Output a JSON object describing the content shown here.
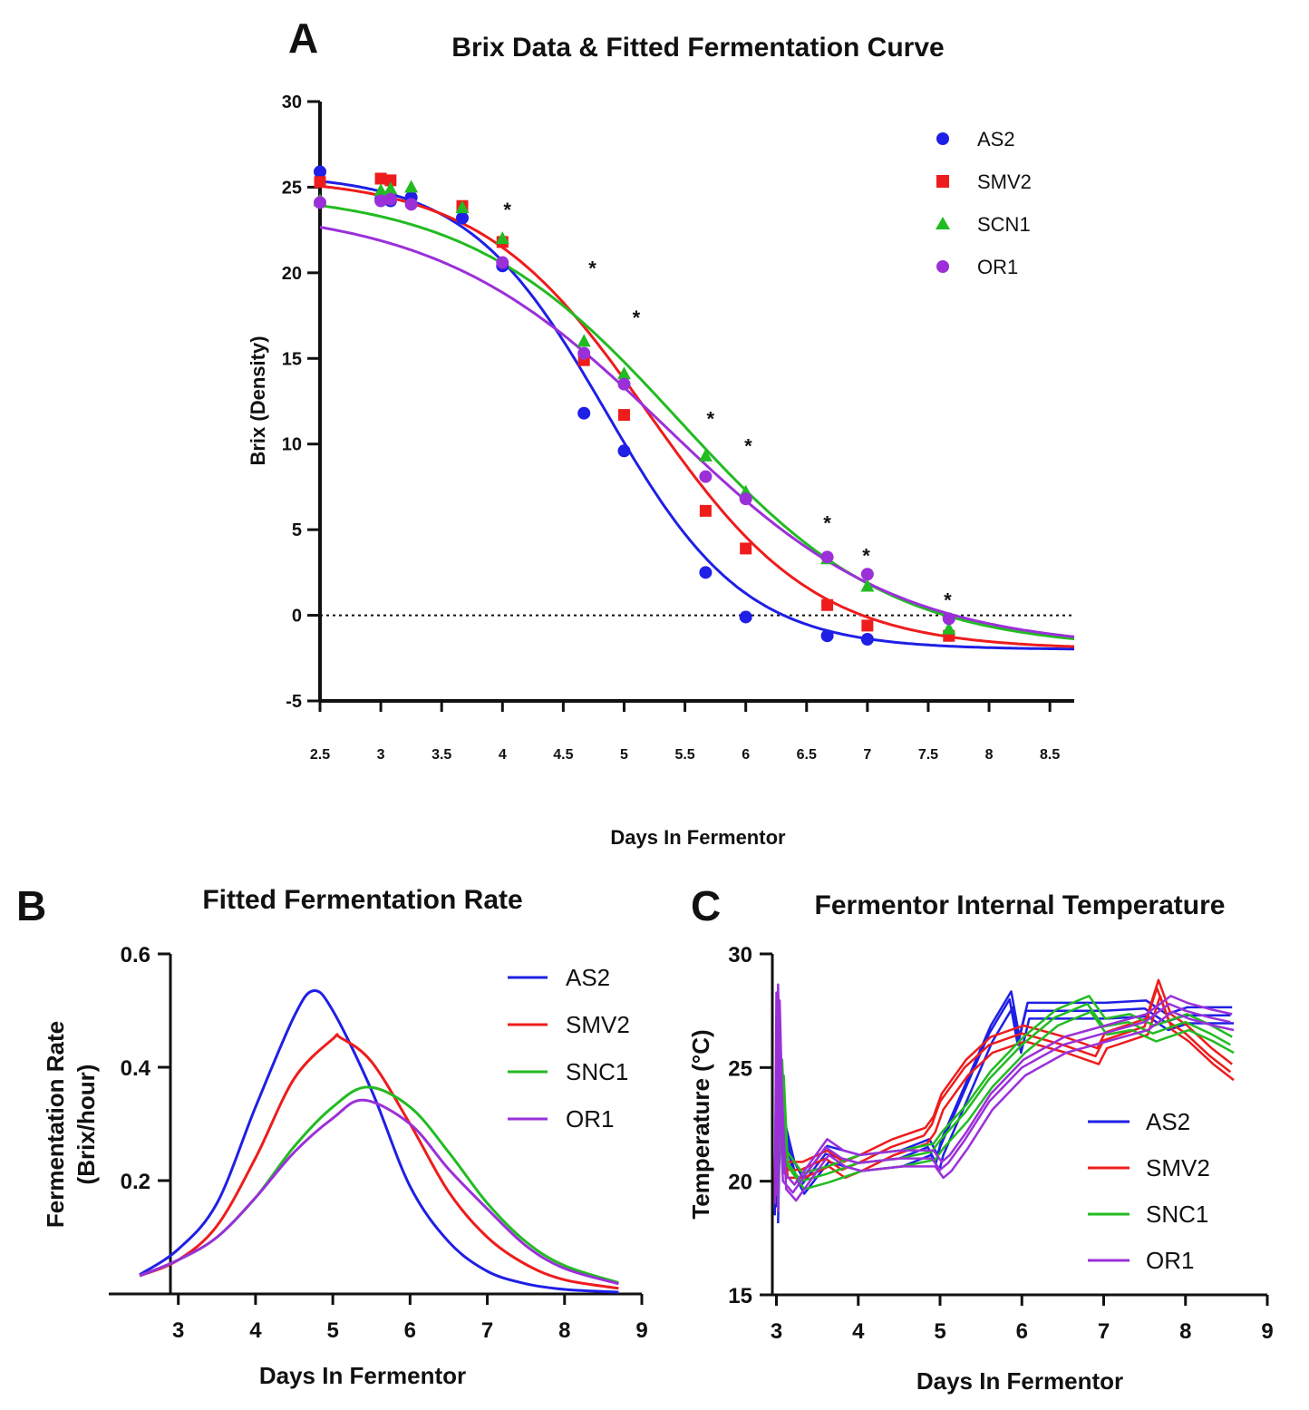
{
  "chart_data": [
    {
      "panel": "A",
      "type": "scatter",
      "title": "Brix Data & Fitted Fermentation Curve",
      "xlabel": "Days In Fermentor",
      "ylabel": "Brix (Density)",
      "xlim": [
        2.5,
        8.7
      ],
      "ylim": [
        -5,
        30
      ],
      "xticks": [
        "2.5",
        "3",
        "3.5",
        "4",
        "4.5",
        "5",
        "5.5",
        "6",
        "6.5",
        "7",
        "7.5",
        "8",
        "8.5"
      ],
      "yticks": [
        "-5",
        "0",
        "5",
        "10",
        "15",
        "20",
        "25",
        "30"
      ],
      "reference_line": 0,
      "legend_position": "top-right",
      "significance_marker": "*",
      "significance_x": [
        4.04,
        4.74,
        5.1,
        5.71,
        6.02,
        6.67,
        6.99,
        7.66
      ],
      "significance_y": [
        23.8,
        20.4,
        17.5,
        11.6,
        10.0,
        5.5,
        3.6,
        1.0
      ],
      "series": [
        {
          "name": "AS2",
          "color": "#1f1fe6",
          "marker": "circle",
          "x": [
            2.5,
            3.0,
            3.08,
            3.25,
            3.67,
            4.0,
            4.67,
            5.0,
            5.67,
            6.0,
            6.67,
            7.0
          ],
          "y": [
            25.9,
            24.3,
            24.2,
            24.4,
            23.2,
            20.4,
            11.8,
            9.6,
            2.5,
            -0.1,
            -1.2,
            -1.4
          ],
          "fit": {
            "top": 25.8,
            "bottom": -2.0,
            "x50": 4.85,
            "slope": 1.75
          }
        },
        {
          "name": "SMV2",
          "color": "#ee1c1c",
          "marker": "square",
          "x": [
            2.5,
            3.0,
            3.08,
            3.67,
            4.0,
            4.67,
            5.0,
            5.67,
            6.0,
            6.67,
            7.0,
            7.67
          ],
          "y": [
            25.3,
            25.5,
            25.4,
            23.9,
            21.8,
            14.9,
            11.7,
            6.1,
            3.9,
            0.6,
            -0.6,
            -1.2
          ],
          "fit": {
            "top": 25.6,
            "bottom": -2.0,
            "x50": 5.2,
            "slope": 1.45
          }
        },
        {
          "name": "SCN1",
          "color": "#22bb22",
          "marker": "triangle",
          "x": [
            2.5,
            3.0,
            3.08,
            3.25,
            3.67,
            4.0,
            4.67,
            5.0,
            5.67,
            6.0,
            6.67,
            7.0,
            7.67
          ],
          "y": [
            24.2,
            24.8,
            24.9,
            25.0,
            23.8,
            22.0,
            16.0,
            14.1,
            9.3,
            7.2,
            3.3,
            1.7,
            -0.8
          ],
          "fit": {
            "top": 24.8,
            "bottom": -2.0,
            "x50": 5.45,
            "slope": 1.15
          }
        },
        {
          "name": "OR1",
          "color": "#9b30d9",
          "marker": "circle",
          "x": [
            2.5,
            3.0,
            3.08,
            3.25,
            4.0,
            4.67,
            5.0,
            5.67,
            6.0,
            6.67,
            7.0,
            7.67
          ],
          "y": [
            24.1,
            24.2,
            24.3,
            24.0,
            20.6,
            15.3,
            13.5,
            8.1,
            6.8,
            3.4,
            2.4,
            -0.2
          ],
          "fit": {
            "top": 23.9,
            "bottom": -2.0,
            "x50": 5.35,
            "slope": 1.05
          }
        }
      ]
    },
    {
      "panel": "B",
      "type": "line",
      "title": "Fitted Fermentation Rate",
      "xlabel": "Days In Fermentor",
      "ylabel_line1": "Fermentation Rate",
      "ylabel_line2": "(Brix/hour)",
      "xlim": [
        2.1,
        9.0
      ],
      "ylim": [
        0.0,
        0.6
      ],
      "xticks": [
        "3",
        "4",
        "5",
        "6",
        "7",
        "8",
        "9"
      ],
      "yticks": [
        "0.2",
        "0.4",
        "0.6"
      ],
      "legend_position": "top-right",
      "series": [
        {
          "name": "AS2",
          "color": "#1f1fe6",
          "x": [
            2.5,
            3.0,
            3.5,
            4.0,
            4.5,
            4.75,
            5.0,
            5.5,
            6.0,
            6.5,
            7.0,
            7.5,
            8.0,
            8.7
          ],
          "y": [
            0.034,
            0.079,
            0.16,
            0.33,
            0.49,
            0.535,
            0.5,
            0.36,
            0.19,
            0.092,
            0.04,
            0.018,
            0.008,
            0.003
          ]
        },
        {
          "name": "SMV2",
          "color": "#ee1c1c",
          "x": [
            2.5,
            3.0,
            3.5,
            4.0,
            4.5,
            5.0,
            5.1,
            5.5,
            6.0,
            6.5,
            7.0,
            7.5,
            8.0,
            8.7
          ],
          "y": [
            0.032,
            0.06,
            0.12,
            0.24,
            0.38,
            0.45,
            0.452,
            0.41,
            0.3,
            0.18,
            0.1,
            0.052,
            0.025,
            0.01
          ]
        },
        {
          "name": "SNC1",
          "color": "#22bb22",
          "x": [
            2.5,
            3.0,
            3.5,
            4.0,
            4.5,
            5.0,
            5.45,
            6.0,
            6.5,
            7.0,
            7.5,
            8.0,
            8.7
          ],
          "y": [
            0.032,
            0.06,
            0.1,
            0.17,
            0.26,
            0.33,
            0.365,
            0.33,
            0.25,
            0.16,
            0.092,
            0.05,
            0.02
          ]
        },
        {
          "name": "OR1",
          "color": "#9b30d9",
          "x": [
            2.5,
            3.0,
            3.5,
            4.0,
            4.5,
            5.0,
            5.4,
            6.0,
            6.5,
            7.0,
            7.5,
            8.0,
            8.7
          ],
          "y": [
            0.032,
            0.06,
            0.1,
            0.17,
            0.25,
            0.31,
            0.342,
            0.3,
            0.22,
            0.15,
            0.085,
            0.045,
            0.018
          ]
        }
      ]
    },
    {
      "panel": "C",
      "type": "line",
      "title": "Fermentor Internal Temperature",
      "xlabel": "Days In Fermentor",
      "ylabel": "Temperature (°C)",
      "xlim": [
        2.95,
        9.0
      ],
      "ylim": [
        15,
        30
      ],
      "xticks": [
        "3",
        "4",
        "5",
        "6",
        "7",
        "8",
        "9"
      ],
      "yticks": [
        "15",
        "20",
        "25",
        "30"
      ],
      "legend_position": "bottom-right",
      "series": [
        {
          "name": "AS2",
          "color": "#1f1fe6",
          "x": [
            2.98,
            3.0,
            3.05,
            3.1,
            3.2,
            3.3,
            3.45,
            3.6,
            3.8,
            4.0,
            4.5,
            4.85,
            4.95,
            5.0,
            5.3,
            5.6,
            5.85,
            5.95,
            6.05,
            6.5,
            7.0,
            7.5,
            7.75,
            8.0,
            8.55
          ],
          "y": [
            18.5,
            22.0,
            23.5,
            22.0,
            20.5,
            19.8,
            20.5,
            21.2,
            21.0,
            20.8,
            21.0,
            21.5,
            20.8,
            21.5,
            24.0,
            26.5,
            28.0,
            26.0,
            27.5,
            27.5,
            27.5,
            27.6,
            27.0,
            27.3,
            27.3
          ]
        },
        {
          "name": "SMV2",
          "color": "#ee1c1c",
          "x": [
            2.98,
            3.0,
            3.05,
            3.1,
            3.3,
            3.6,
            3.8,
            4.0,
            4.4,
            4.8,
            4.9,
            5.0,
            5.3,
            5.6,
            6.0,
            6.5,
            6.9,
            7.0,
            7.5,
            7.65,
            7.8,
            8.0,
            8.3,
            8.55
          ],
          "y": [
            19.5,
            25.5,
            22.0,
            20.5,
            20.5,
            21.0,
            20.5,
            20.8,
            21.5,
            22.0,
            22.5,
            23.5,
            25.0,
            26.0,
            26.5,
            26.0,
            25.5,
            26.2,
            26.8,
            28.5,
            27.0,
            26.5,
            25.5,
            24.8
          ]
        },
        {
          "name": "SNC1",
          "color": "#22bb22",
          "x": [
            2.98,
            3.0,
            3.05,
            3.1,
            3.3,
            3.6,
            4.0,
            4.5,
            4.9,
            5.0,
            5.3,
            5.6,
            6.0,
            6.4,
            6.8,
            7.0,
            7.3,
            7.6,
            8.0,
            8.3,
            8.55
          ],
          "y": [
            19.0,
            23.0,
            25.0,
            21.0,
            20.0,
            20.3,
            20.8,
            21.0,
            21.3,
            21.8,
            23.0,
            24.5,
            26.0,
            27.2,
            27.8,
            26.8,
            27.0,
            26.5,
            27.0,
            26.5,
            26.0
          ]
        },
        {
          "name": "OR1",
          "color": "#9b30d9",
          "x": [
            2.98,
            3.0,
            3.03,
            3.08,
            3.2,
            3.4,
            3.6,
            3.8,
            4.0,
            4.5,
            4.9,
            5.0,
            5.1,
            5.3,
            5.6,
            6.0,
            6.5,
            7.0,
            7.5,
            7.8,
            8.0,
            8.3,
            8.55
          ],
          "y": [
            19.0,
            28.3,
            24.0,
            20.0,
            19.5,
            20.5,
            21.5,
            21.0,
            20.8,
            21.0,
            21.0,
            20.5,
            20.8,
            21.8,
            23.5,
            25.0,
            26.0,
            26.5,
            27.0,
            27.8,
            27.5,
            27.2,
            27.0
          ]
        }
      ]
    }
  ]
}
